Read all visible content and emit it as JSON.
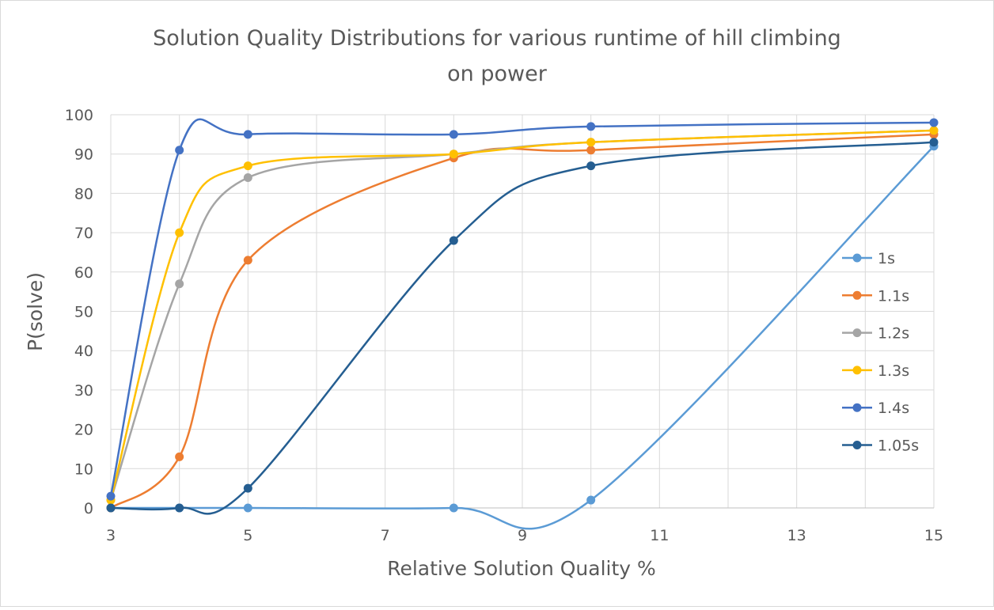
{
  "chart_data": {
    "type": "line",
    "title_lines": [
      "Solution Quality Distributions for various runtime of hill climbing",
      "on power"
    ],
    "xlabel": "Relative Solution Quality %",
    "ylabel": "P(solve)",
    "xlim": [
      3,
      15
    ],
    "ylim": [
      0,
      100
    ],
    "x_ticks": [
      3,
      5,
      7,
      9,
      11,
      13,
      15
    ],
    "y_ticks": [
      0,
      10,
      20,
      30,
      40,
      50,
      60,
      70,
      80,
      90,
      100
    ],
    "grid": true,
    "smooth": true,
    "legend_position": "right",
    "x": [
      3,
      4,
      5,
      8,
      10,
      15
    ],
    "series": [
      {
        "name": "1s",
        "color": "#5b9bd5",
        "values": [
          0,
          0,
          0,
          0,
          2,
          92
        ]
      },
      {
        "name": "1.1s",
        "color": "#ed7d31",
        "values": [
          0,
          13,
          63,
          89,
          91,
          95
        ]
      },
      {
        "name": "1.2s",
        "color": "#a5a5a5",
        "values": [
          2,
          57,
          84,
          90,
          93,
          96
        ]
      },
      {
        "name": "1.3s",
        "color": "#ffc000",
        "values": [
          2,
          70,
          87,
          90,
          93,
          96
        ]
      },
      {
        "name": "1.4s",
        "color": "#4472c4",
        "values": [
          3,
          91,
          95,
          95,
          97,
          98
        ]
      },
      {
        "name": "1.05s",
        "color": "#255e91",
        "values": [
          0,
          0,
          5,
          68,
          87,
          93
        ]
      }
    ]
  }
}
